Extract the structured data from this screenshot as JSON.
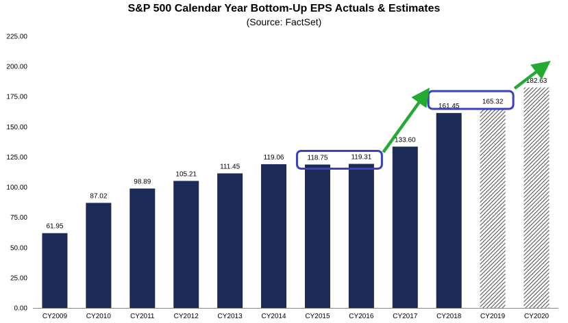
{
  "chart_data": {
    "type": "bar",
    "title": "S&P 500 Calendar Year Bottom-Up EPS Actuals & Estimates",
    "subtitle": "(Source: FactSet)",
    "categories": [
      "CY2009",
      "CY2010",
      "CY2011",
      "CY2012",
      "CY2013",
      "CY2014",
      "CY2015",
      "CY2016",
      "CY2017",
      "CY2018",
      "CY2019",
      "CY2020"
    ],
    "values": [
      61.95,
      87.02,
      98.89,
      105.21,
      111.45,
      119.06,
      118.75,
      119.31,
      133.6,
      161.45,
      165.32,
      182.63
    ],
    "value_labels": [
      "61.95",
      "87.02",
      "98.89",
      "105.21",
      "111.45",
      "119.06",
      "118.75",
      "119.31",
      "133.60",
      "161.45",
      "165.32",
      "182.63"
    ],
    "kind": [
      "actual",
      "actual",
      "actual",
      "actual",
      "actual",
      "actual",
      "actual",
      "actual",
      "actual",
      "actual",
      "estimate",
      "estimate"
    ],
    "ylim": [
      0,
      225
    ],
    "yticks": [
      "0.00",
      "25.00",
      "50.00",
      "75.00",
      "100.00",
      "125.00",
      "150.00",
      "175.00",
      "200.00",
      "225.00"
    ],
    "xlabel": "",
    "ylabel": "",
    "grid": false,
    "legend": "none",
    "colors": {
      "actual": "#1b2a57",
      "estimate_hatch": "#555555",
      "highlight_box": "#3a3fc4",
      "arrow": "#22aa33"
    }
  }
}
